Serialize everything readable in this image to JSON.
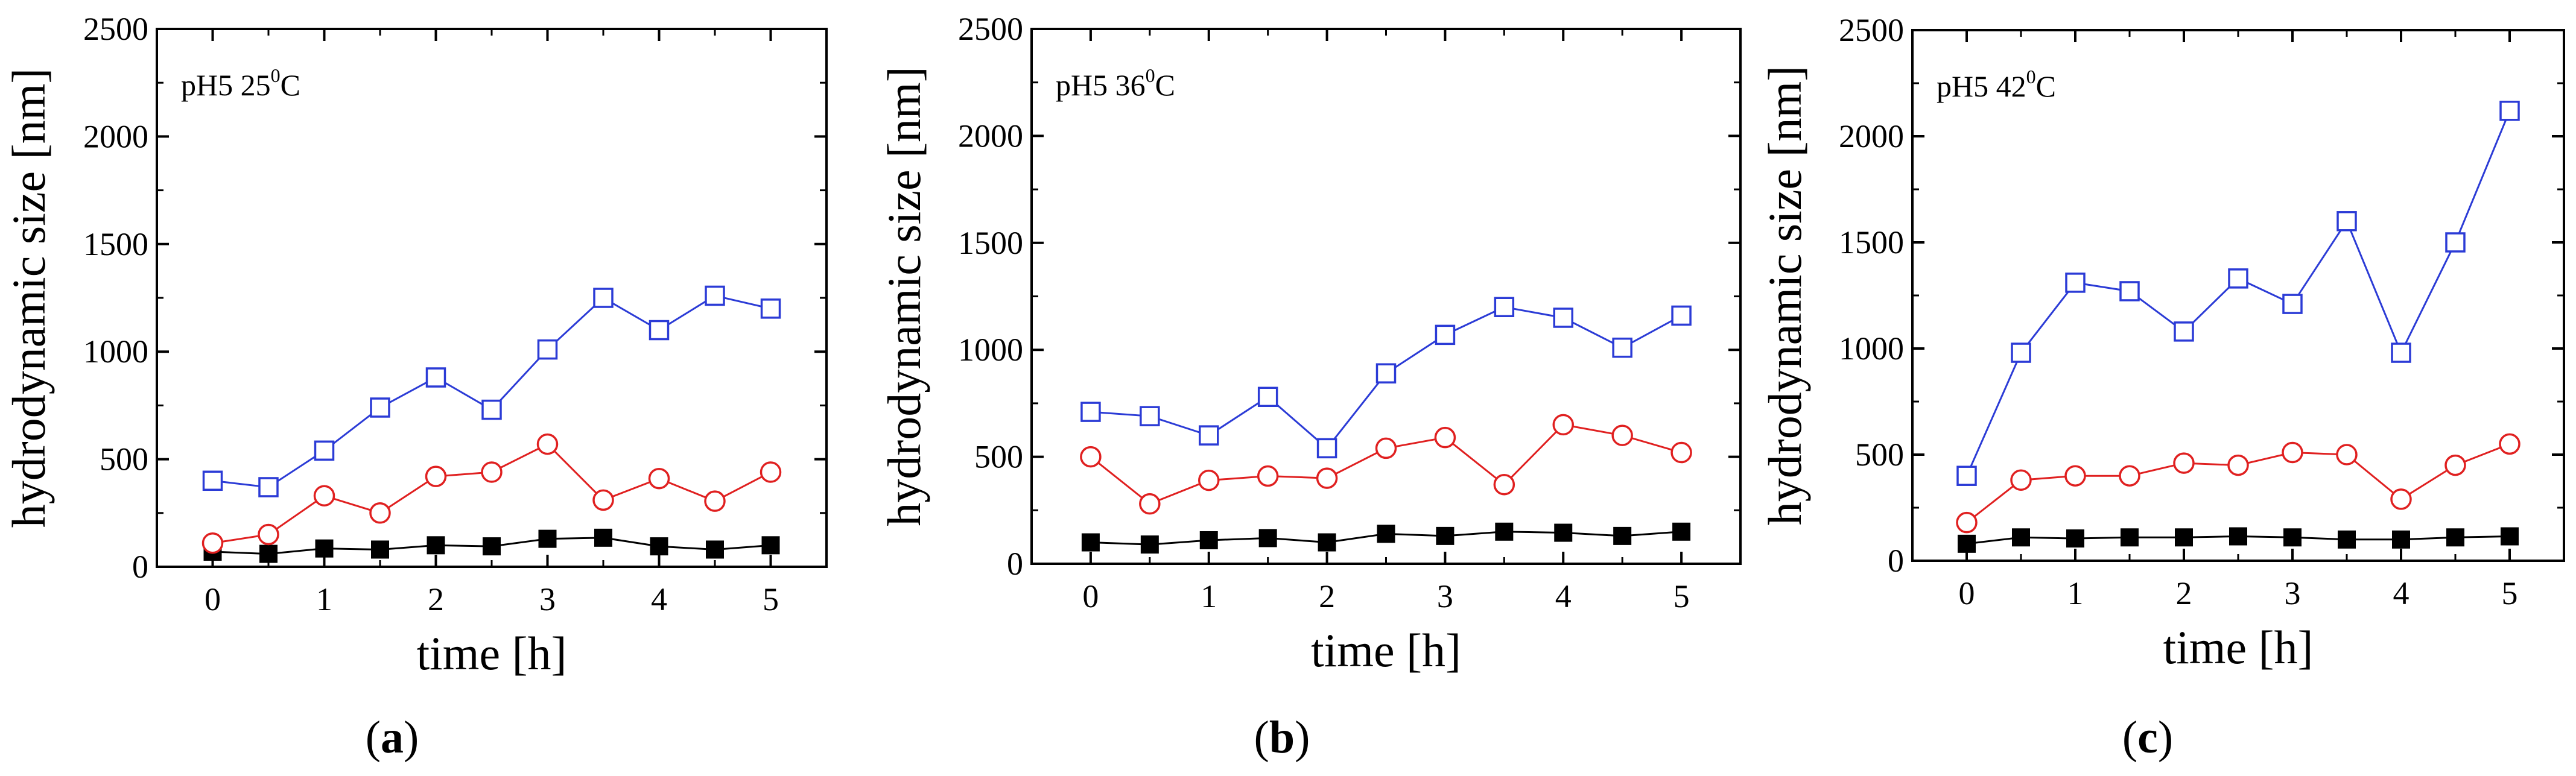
{
  "colors": {
    "blue": "#2b3bd6",
    "red": "#e02020",
    "black": "#000000"
  },
  "chart_data": [
    {
      "type": "line",
      "panel_label": "a",
      "annotation": {
        "prefix": "pH5  25",
        "sup": "0",
        "suffix": "C"
      },
      "xlabel": "time [h]",
      "ylabel": "hydrodynamic size [nm]",
      "xlim": [
        -0.5,
        5.5
      ],
      "ylim": [
        0,
        2500
      ],
      "xticks": [
        0,
        1,
        2,
        3,
        4,
        5
      ],
      "yticks": [
        0,
        500,
        1000,
        1500,
        2000,
        2500
      ],
      "x": [
        0,
        0.5,
        1,
        1.5,
        2,
        2.5,
        3,
        3.5,
        4,
        4.5,
        5
      ],
      "series": [
        {
          "name": "blue open squares",
          "marker": "open-square",
          "color": "blue",
          "values": [
            400,
            370,
            540,
            740,
            880,
            730,
            1010,
            1250,
            1100,
            1260,
            1200
          ]
        },
        {
          "name": "red open circles",
          "marker": "open-circle",
          "color": "red",
          "values": [
            110,
            150,
            330,
            250,
            420,
            440,
            570,
            310,
            410,
            305,
            440
          ]
        },
        {
          "name": "black filled squares",
          "marker": "filled-square",
          "color": "black",
          "values": [
            70,
            60,
            85,
            80,
            100,
            95,
            130,
            135,
            95,
            80,
            100
          ]
        }
      ]
    },
    {
      "type": "line",
      "panel_label": "b",
      "annotation": {
        "prefix": "pH5  36",
        "sup": "0",
        "suffix": "C"
      },
      "xlabel": "time [h]",
      "ylabel": "hydrodynamic size [nm]",
      "xlim": [
        -0.5,
        5.5
      ],
      "ylim": [
        0,
        2500
      ],
      "xticks": [
        0,
        1,
        2,
        3,
        4,
        5
      ],
      "yticks": [
        0,
        500,
        1000,
        1500,
        2000,
        2500
      ],
      "x": [
        0,
        0.5,
        1,
        1.5,
        2,
        2.5,
        3,
        3.5,
        4,
        4.5,
        5
      ],
      "series": [
        {
          "name": "blue open squares",
          "marker": "open-square",
          "color": "blue",
          "values": [
            710,
            690,
            600,
            780,
            540,
            890,
            1070,
            1200,
            1150,
            1010,
            1160
          ]
        },
        {
          "name": "red open circles",
          "marker": "open-circle",
          "color": "red",
          "values": [
            500,
            280,
            390,
            410,
            400,
            540,
            590,
            370,
            650,
            600,
            520
          ]
        },
        {
          "name": "black filled squares",
          "marker": "filled-square",
          "color": "black",
          "values": [
            100,
            90,
            110,
            120,
            100,
            140,
            130,
            150,
            145,
            130,
            150
          ]
        }
      ]
    },
    {
      "type": "line",
      "panel_label": "c",
      "annotation": {
        "prefix": "pH5  42",
        "sup": "0",
        "suffix": "C"
      },
      "xlabel": "time [h]",
      "ylabel": "hydrodynamic size [nm]",
      "xlim": [
        -0.5,
        5.5
      ],
      "ylim": [
        0,
        2500
      ],
      "xticks": [
        0,
        1,
        2,
        3,
        4,
        5
      ],
      "yticks": [
        0,
        500,
        1000,
        1500,
        2000,
        2500
      ],
      "x": [
        0,
        0.5,
        1,
        1.5,
        2,
        2.5,
        3,
        3.5,
        4,
        4.5,
        5
      ],
      "series": [
        {
          "name": "blue open squares",
          "marker": "open-square",
          "color": "blue",
          "values": [
            400,
            980,
            1310,
            1270,
            1080,
            1330,
            1210,
            1600,
            980,
            1500,
            2120
          ]
        },
        {
          "name": "red open circles",
          "marker": "open-circle",
          "color": "red",
          "values": [
            180,
            380,
            400,
            400,
            460,
            450,
            510,
            500,
            290,
            450,
            550
          ]
        },
        {
          "name": "black filled squares",
          "marker": "filled-square",
          "color": "black",
          "values": [
            80,
            110,
            105,
            110,
            110,
            115,
            110,
            100,
            100,
            110,
            115
          ]
        }
      ]
    }
  ]
}
